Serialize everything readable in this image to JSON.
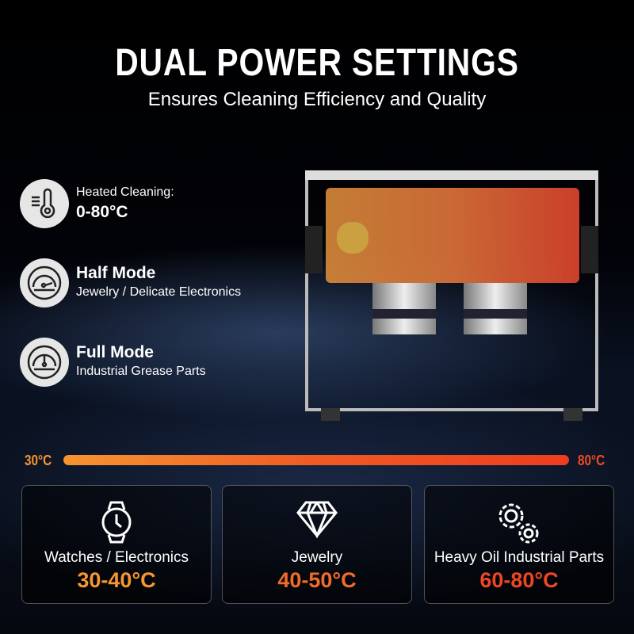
{
  "header": {
    "title": "DUAL POWER SETTINGS",
    "subtitle": "Ensures Cleaning Efficiency and Quality"
  },
  "features": [
    {
      "icon": "thermometer-icon",
      "label": "Heated Cleaning:",
      "value": "0-80°C"
    },
    {
      "icon": "gauge-half-icon",
      "title": "Half Mode",
      "desc": "Jewelry / Delicate Electronics"
    },
    {
      "icon": "gauge-full-icon",
      "title": "Full Mode",
      "desc": "Industrial Grease Parts"
    }
  ],
  "temp_bar": {
    "min_label": "30°C",
    "max_label": "80°C",
    "colors": [
      "#f7942f",
      "#ee3d1e"
    ]
  },
  "cards": [
    {
      "icon": "watch-icon",
      "label": "Watches / Electronics",
      "range": "30-40°C",
      "color": "#f7962f"
    },
    {
      "icon": "diamond-icon",
      "label": "Jewelry",
      "range": "40-50°C",
      "color": "#f36a2a"
    },
    {
      "icon": "gears-icon",
      "label": "Heavy Oil Industrial Parts",
      "range": "60-80°C",
      "color": "#ef4624"
    }
  ]
}
